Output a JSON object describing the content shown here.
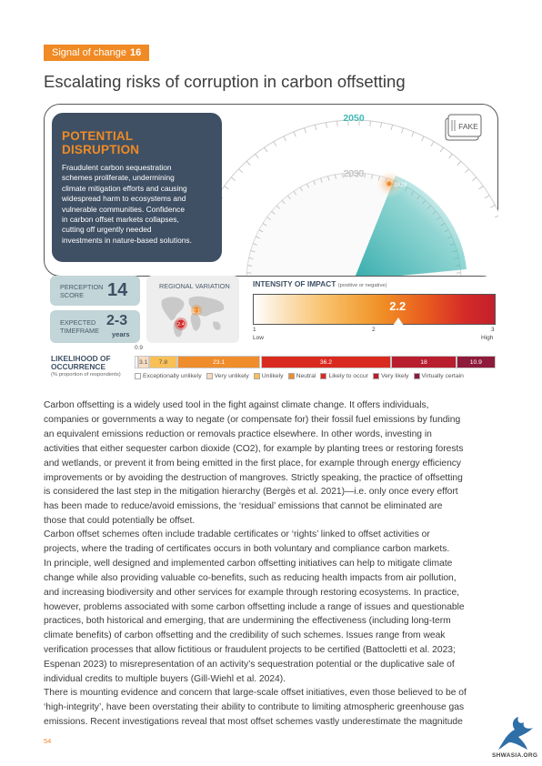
{
  "tag": {
    "label": "Signal of change",
    "number": "16"
  },
  "headline": "Escalating risks of corruption in carbon offsetting",
  "disruption": {
    "title": "POTENTIAL DISRUPTION",
    "lines": [
      "Fraudulent carbon sequestration",
      "schemes proliferate, undermining",
      "climate mitigation efforts and causing",
      "widespread harm to ecosystems and",
      "vulnerable communities. Confidence",
      "in carbon offset markets collapses,",
      "cutting off urgently needed",
      "investments in nature-based solutions."
    ]
  },
  "radar": {
    "label_2050": "2050",
    "label_2030": "2030",
    "label_2028": "2028"
  },
  "fake_icon_text": "FAKE",
  "perception": {
    "label_line1": "PERCEPTION",
    "label_line2": "SCORE",
    "value": "14"
  },
  "timeframe": {
    "label_line1": "EXPECTED",
    "label_line2": "TIMEFRAME",
    "value": "2-3",
    "unit": "years"
  },
  "regional": {
    "title": "REGIONAL VARIATION",
    "marker_1": "2.1",
    "marker_2": "2.4"
  },
  "impact": {
    "title": "INTENSITY OF IMPACT",
    "subtitle": "(positive or negative)",
    "value": "2.2",
    "value_num": 2.2,
    "scale": {
      "min": 1,
      "max": 3
    },
    "ticks": [
      "1",
      "2",
      "3"
    ],
    "low": "Low",
    "high": "High"
  },
  "likelihood": {
    "title_line1": "LIKELIHOOD OF",
    "title_line2": "OCCURRENCE",
    "subtitle": "(% proportion of respondents)",
    "note": "0.9",
    "segments": [
      {
        "category": "Exceptionally unlikely",
        "value": 0.9,
        "label": "",
        "color": "#ffffff",
        "text_color": "#555555"
      },
      {
        "category": "Very unlikely",
        "value": 3.1,
        "label": "3.1",
        "color": "#f8dcc0",
        "text_color": "#555555"
      },
      {
        "category": "Unlikely",
        "value": 7.8,
        "label": "7.8",
        "color": "#f9c055",
        "text_color": "#555555"
      },
      {
        "category": "Neutral",
        "value": 23.1,
        "label": "23.1",
        "color": "#ef8c2c",
        "text_color": "#ffffff"
      },
      {
        "category": "Likely to occur",
        "value": 36.2,
        "label": "36.2",
        "color": "#d92a20",
        "text_color": "#ffffff"
      },
      {
        "category": "Very likely",
        "value": 18.0,
        "label": "18",
        "color": "#b81e2e",
        "text_color": "#ffffff"
      },
      {
        "category": "Virtually certain",
        "value": 10.9,
        "label": "10.9",
        "color": "#8e1b3a",
        "text_color": "#ffffff"
      }
    ]
  },
  "paragraphs": [
    [
      "Carbon offsetting is a widely used tool in the fight against climate change. It offers individuals,",
      "companies or governments a way to negate (or compensate for) their fossil fuel emissions by funding",
      "an equivalent emissions reduction or removals practice elsewhere. In other words, investing in",
      "activities that either sequester carbon dioxide (CO2), for example by planting trees or restoring forests",
      "and wetlands, or prevent it from being emitted in the first place, for example through energy efficiency",
      "improvements or by avoiding the destruction of mangroves. Strictly speaking, the practice of offsetting",
      "is considered the last step in the mitigation hierarchy (Bergès et al. 2021)—i.e. only once every effort",
      "has been made to reduce/avoid emissions, the ‘residual’ emissions that cannot be eliminated are",
      "those that could potentially be offset."
    ],
    [
      "Carbon offset schemes often include tradable certificates or ‘rights’ linked to offset activities or",
      "projects, where the trading of certificates occurs in both voluntary and compliance carbon markets.",
      "In principle, well designed and implemented carbon offsetting initiatives can help to mitigate climate",
      "change while also providing valuable co-benefits, such as reducing health impacts from air pollution,",
      "and increasing biodiversity and other services for example through restoring ecosystems. In practice,",
      "however, problems associated with some carbon offsetting include a range of issues and questionable",
      "practices, both historical and emerging, that are undermining the effectiveness (including long-term",
      "climate benefits) of carbon offsetting and the credibility of such schemes. Issues range from weak",
      "verification processes that allow fictitious or fraudulent projects to be certified (Battocletti et al. 2023;",
      "Espenan 2023) to misrepresentation of an activity’s sequestration potential or the duplicative sale of",
      "individual credits to multiple buyers (Gill-Wiehl et al. 2024)."
    ],
    [
      "There is mounting evidence and concern that large-scale offset initiatives, even those believed to be of",
      "‘high-integrity’, have been overstating their ability to contribute to limiting atmospheric greenhouse gas",
      "emissions. Recent investigations reveal that most offset schemes vastly underestimate the magnitude"
    ]
  ],
  "page_number": "54",
  "watermark": "SHWASIA.ORG",
  "colors": {
    "accent": "#f08a24",
    "panel": "#3f5064",
    "teal": "#2aa7a7"
  }
}
